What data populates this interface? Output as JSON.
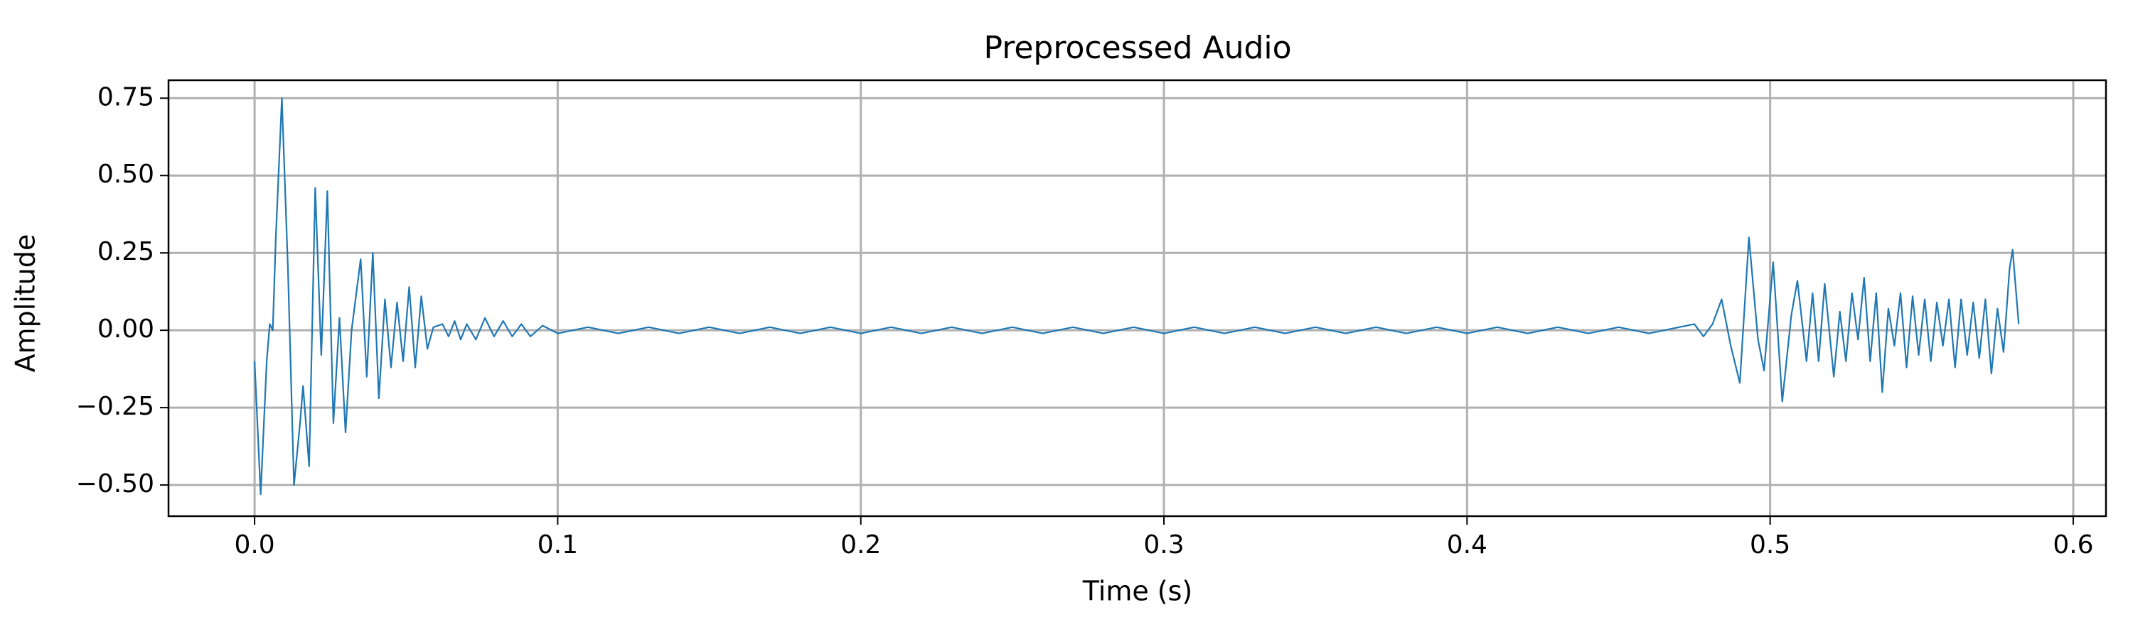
{
  "chart_data": {
    "type": "line",
    "title": "Preprocessed Audio",
    "xlabel": "Time (s)",
    "ylabel": "Amplitude",
    "grid": true,
    "xlim": [
      -0.0284,
      0.6108
    ],
    "ylim": [
      -0.6007,
      0.808
    ],
    "xticks": [
      {
        "value": 0,
        "label": "0.0"
      },
      0.1,
      0.2,
      0.3,
      0.4,
      0.5,
      0.6
    ],
    "yticks": [
      {
        "value": -0.5,
        "label": "−0.50"
      },
      {
        "value": -0.25,
        "label": "−0.25"
      },
      {
        "value": 0,
        "label": "0.00"
      },
      0.25,
      {
        "value": 0.5,
        "label": "0.50"
      },
      0.75
    ],
    "series": [
      {
        "name": "Amplitude",
        "color": "#1f77b4",
        "x": [
          0.0,
          0.002,
          0.004,
          0.005,
          0.006,
          0.007,
          0.009,
          0.011,
          0.013,
          0.015,
          0.016,
          0.018,
          0.02,
          0.022,
          0.024,
          0.026,
          0.028,
          0.03,
          0.032,
          0.035,
          0.037,
          0.039,
          0.041,
          0.043,
          0.045,
          0.047,
          0.049,
          0.051,
          0.053,
          0.055,
          0.057,
          0.059,
          0.062,
          0.064,
          0.066,
          0.068,
          0.07,
          0.073,
          0.076,
          0.079,
          0.082,
          0.085,
          0.088,
          0.091,
          0.095,
          0.1,
          0.11,
          0.12,
          0.13,
          0.14,
          0.15,
          0.16,
          0.17,
          0.18,
          0.19,
          0.2,
          0.21,
          0.22,
          0.23,
          0.24,
          0.25,
          0.26,
          0.27,
          0.28,
          0.29,
          0.3,
          0.31,
          0.32,
          0.33,
          0.34,
          0.35,
          0.36,
          0.37,
          0.38,
          0.39,
          0.4,
          0.41,
          0.42,
          0.43,
          0.44,
          0.45,
          0.46,
          0.47,
          0.475,
          0.478,
          0.481,
          0.484,
          0.487,
          0.49,
          0.493,
          0.496,
          0.498,
          0.501,
          0.504,
          0.507,
          0.509,
          0.512,
          0.514,
          0.516,
          0.518,
          0.521,
          0.523,
          0.525,
          0.527,
          0.529,
          0.531,
          0.533,
          0.535,
          0.537,
          0.539,
          0.541,
          0.543,
          0.545,
          0.547,
          0.549,
          0.551,
          0.553,
          0.555,
          0.557,
          0.559,
          0.561,
          0.563,
          0.565,
          0.567,
          0.569,
          0.571,
          0.573,
          0.575,
          0.577,
          0.579,
          0.58,
          0.582
        ],
        "values": [
          -0.1,
          -0.53,
          -0.1,
          0.02,
          0.0,
          0.3,
          0.75,
          0.2,
          -0.5,
          -0.3,
          -0.18,
          -0.44,
          0.46,
          -0.08,
          0.45,
          -0.3,
          0.04,
          -0.33,
          0.0,
          0.23,
          -0.15,
          0.25,
          -0.22,
          0.1,
          -0.12,
          0.09,
          -0.1,
          0.14,
          -0.12,
          0.11,
          -0.06,
          0.01,
          0.02,
          -0.02,
          0.03,
          -0.03,
          0.02,
          -0.03,
          0.04,
          -0.02,
          0.03,
          -0.02,
          0.02,
          -0.02,
          0.015,
          -0.01,
          0.01,
          -0.01,
          0.01,
          -0.01,
          0.01,
          -0.01,
          0.01,
          -0.01,
          0.01,
          -0.01,
          0.01,
          -0.01,
          0.01,
          -0.01,
          0.01,
          -0.01,
          0.01,
          -0.01,
          0.01,
          -0.01,
          0.01,
          -0.01,
          0.01,
          -0.01,
          0.01,
          -0.01,
          0.01,
          -0.01,
          0.01,
          -0.01,
          0.01,
          -0.01,
          0.01,
          -0.01,
          0.01,
          -0.01,
          0.01,
          0.02,
          -0.02,
          0.02,
          0.1,
          -0.05,
          -0.17,
          0.3,
          -0.03,
          -0.13,
          0.22,
          -0.23,
          0.05,
          0.16,
          -0.1,
          0.12,
          -0.1,
          0.15,
          -0.15,
          0.06,
          -0.1,
          0.12,
          -0.03,
          0.17,
          -0.1,
          0.12,
          -0.2,
          0.07,
          -0.05,
          0.12,
          -0.12,
          0.11,
          -0.08,
          0.1,
          -0.1,
          0.09,
          -0.05,
          0.1,
          -0.12,
          0.1,
          -0.08,
          0.09,
          -0.09,
          0.1,
          -0.14,
          0.07,
          -0.07,
          0.2,
          0.26,
          0.02
        ]
      }
    ]
  }
}
